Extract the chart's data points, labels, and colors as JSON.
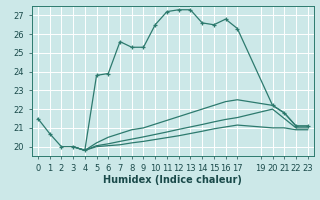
{
  "xlabel": "Humidex (Indice chaleur)",
  "bg_color": "#cce8e8",
  "line_color": "#2d7a6e",
  "grid_color": "#aed4d4",
  "xlim": [
    -0.5,
    23.5
  ],
  "ylim": [
    19.5,
    27.5
  ],
  "yticks": [
    20,
    21,
    22,
    23,
    24,
    25,
    26,
    27
  ],
  "xticks": [
    0,
    1,
    2,
    3,
    4,
    5,
    6,
    7,
    8,
    9,
    10,
    11,
    12,
    13,
    14,
    15,
    16,
    17,
    19,
    20,
    21,
    22,
    23
  ],
  "line1_x": [
    0,
    1,
    2,
    3,
    4,
    5,
    6,
    7,
    8,
    9,
    10,
    11,
    12,
    13,
    14,
    15,
    16,
    17,
    20,
    21,
    22,
    23
  ],
  "line1_y": [
    21.5,
    20.7,
    20.0,
    20.0,
    19.8,
    23.8,
    23.9,
    25.6,
    25.3,
    25.3,
    26.5,
    27.2,
    27.3,
    27.3,
    26.6,
    26.5,
    26.8,
    26.3,
    22.2,
    21.8,
    21.1,
    21.1
  ],
  "line2_x": [
    3,
    4,
    5,
    6,
    7,
    8,
    9,
    10,
    11,
    12,
    13,
    14,
    15,
    16,
    17,
    20,
    21,
    22,
    23
  ],
  "line2_y": [
    20.0,
    19.8,
    20.2,
    20.5,
    20.7,
    20.9,
    21.0,
    21.2,
    21.4,
    21.6,
    21.8,
    22.0,
    22.2,
    22.4,
    22.5,
    22.2,
    21.8,
    21.1,
    21.1
  ],
  "line3_x": [
    3,
    4,
    5,
    6,
    7,
    8,
    9,
    10,
    11,
    12,
    13,
    14,
    15,
    16,
    17,
    20,
    21,
    22,
    23
  ],
  "line3_y": [
    20.0,
    19.8,
    20.05,
    20.15,
    20.28,
    20.4,
    20.52,
    20.65,
    20.78,
    20.92,
    21.05,
    21.18,
    21.32,
    21.45,
    21.55,
    22.0,
    21.5,
    21.0,
    21.0
  ],
  "line4_x": [
    3,
    4,
    5,
    6,
    7,
    8,
    9,
    10,
    11,
    12,
    13,
    14,
    15,
    16,
    17,
    20,
    21,
    22,
    23
  ],
  "line4_y": [
    20.0,
    19.8,
    20.0,
    20.05,
    20.1,
    20.2,
    20.28,
    20.38,
    20.48,
    20.58,
    20.7,
    20.82,
    20.95,
    21.05,
    21.15,
    21.0,
    21.0,
    20.9,
    20.9
  ]
}
